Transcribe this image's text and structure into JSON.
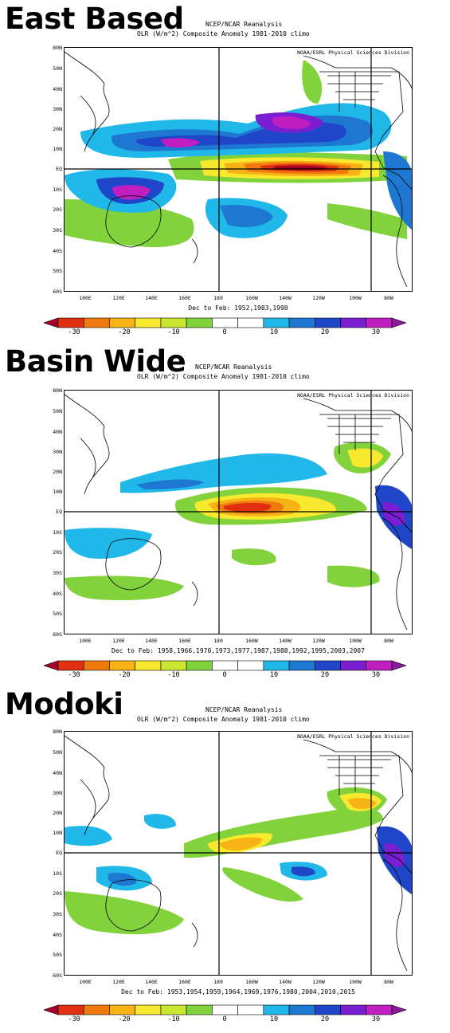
{
  "panels": [
    {
      "heading": "East Based",
      "source": "NCEP/NCAR Reanalysis",
      "subtitle": "OLR (W/m^2) Composite Anomaly 1981-2010 climo",
      "credit": "NOAA/ESRL Physical Sciences Division",
      "period": "Dec to Feb: 1952,1983,1998"
    },
    {
      "heading": "Basin Wide",
      "source": "NCEP/NCAR Reanalysis",
      "subtitle": "OLR (W/m^2) Composite Anomaly 1981-2010 climo",
      "credit": "NOAA/ESRL Physical Sciences Division",
      "period": "Dec to Feb: 1958,1966,1970,1973,1977,1987,1988,1992,1995,2003,2007"
    },
    {
      "heading": "Modoki",
      "source": "NCEP/NCAR Reanalysis",
      "subtitle": "OLR (W/m^2) Composite Anomaly 1981-2010 climo",
      "credit": "NOAA/ESRL Physical Sciences Division",
      "period": "Dec to Feb: 1953,1954,1959,1964,1969,1976,1980,2004,2010,2015"
    }
  ],
  "lat_labels": [
    "80N",
    "50N",
    "40N",
    "30N",
    "20N",
    "10N",
    "EQ",
    "10S",
    "20S",
    "30S",
    "40S",
    "50S",
    "60S"
  ],
  "lon_labels": [
    "100E",
    "120E",
    "140E",
    "160E",
    "180",
    "160W",
    "140W",
    "120W",
    "100W",
    "80W"
  ],
  "colorbar": {
    "labels": [
      "-30",
      "-20",
      "-10",
      "0",
      "10",
      "20",
      "30"
    ],
    "colors": [
      "#a50026",
      "#e03010",
      "#f07a10",
      "#f7b216",
      "#f8e82e",
      "#c8e632",
      "#82d23c",
      "#ffffff",
      "#ffffff",
      "#20b8e8",
      "#1e78d2",
      "#1f46c8",
      "#7a1ed2",
      "#c01ec0",
      "#8a1a9a"
    ]
  },
  "colors": {
    "positive_deep": "#c01ec0",
    "positive_mid": "#1f46c8",
    "positive_light": "#20b8e8",
    "negative_deep": "#a50026",
    "negative_mid": "#f07a10",
    "negative_light": "#82d23c"
  }
}
